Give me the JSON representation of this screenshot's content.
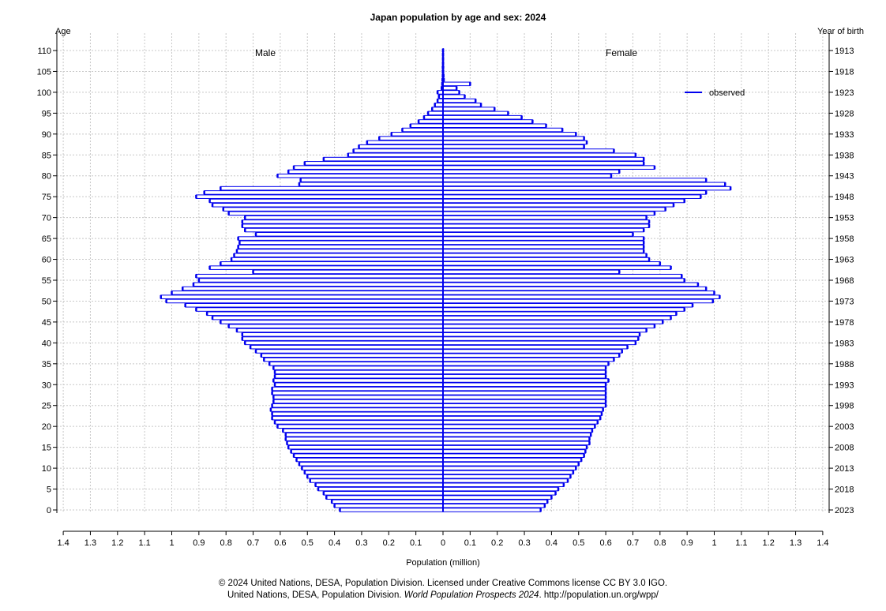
{
  "chart_data": {
    "type": "bar",
    "title": "Japan population by age and sex: 2024",
    "y_left_label": "Age",
    "y_right_label": "Year of birth",
    "xlabel": "Population (million)",
    "series_labels": [
      "Male",
      "Female"
    ],
    "legend": {
      "label": "observed",
      "color": "#0000ee",
      "position": "top-right"
    },
    "grid": true,
    "xlim": [
      -1.4,
      1.4
    ],
    "ylim": [
      0,
      110
    ],
    "x_ticks": [
      "1.4",
      "1.3",
      "1.2",
      "1.1",
      "1",
      "0.9",
      "0.8",
      "0.7",
      "0.6",
      "0.5",
      "0.4",
      "0.3",
      "0.2",
      "0.1",
      "0",
      "0.1",
      "0.2",
      "0.3",
      "0.4",
      "0.5",
      "0.6",
      "0.7",
      "0.8",
      "0.9",
      "1",
      "1.1",
      "1.2",
      "1.3",
      "1.4"
    ],
    "age_ticks": [
      "0",
      "5",
      "10",
      "15",
      "20",
      "25",
      "30",
      "35",
      "40",
      "45",
      "50",
      "55",
      "60",
      "65",
      "70",
      "75",
      "80",
      "85",
      "90",
      "95",
      "100",
      "105",
      "110"
    ],
    "year_ticks": [
      "2023",
      "2018",
      "2013",
      "2008",
      "2003",
      "1998",
      "1993",
      "1988",
      "1983",
      "1978",
      "1973",
      "1968",
      "1963",
      "1958",
      "1953",
      "1948",
      "1943",
      "1938",
      "1933",
      "1928",
      "1923",
      "1918",
      "1913"
    ],
    "ages": [
      0,
      1,
      2,
      3,
      4,
      5,
      6,
      7,
      8,
      9,
      10,
      11,
      12,
      13,
      14,
      15,
      16,
      17,
      18,
      19,
      20,
      21,
      22,
      23,
      24,
      25,
      26,
      27,
      28,
      29,
      30,
      31,
      32,
      33,
      34,
      35,
      36,
      37,
      38,
      39,
      40,
      41,
      42,
      43,
      44,
      45,
      46,
      47,
      48,
      49,
      50,
      51,
      52,
      53,
      54,
      55,
      56,
      57,
      58,
      59,
      60,
      61,
      62,
      63,
      64,
      65,
      66,
      67,
      68,
      69,
      70,
      71,
      72,
      73,
      74,
      75,
      76,
      77,
      78,
      79,
      80,
      81,
      82,
      83,
      84,
      85,
      86,
      87,
      88,
      89,
      90,
      91,
      92,
      93,
      94,
      95,
      96,
      97,
      98,
      99,
      100,
      101,
      102,
      103,
      104,
      105,
      106,
      107,
      108,
      109,
      110
    ],
    "male": [
      0.38,
      0.4,
      0.41,
      0.43,
      0.44,
      0.46,
      0.47,
      0.49,
      0.5,
      0.51,
      0.52,
      0.53,
      0.54,
      0.55,
      0.56,
      0.57,
      0.575,
      0.58,
      0.58,
      0.59,
      0.61,
      0.62,
      0.63,
      0.63,
      0.635,
      0.63,
      0.625,
      0.625,
      0.63,
      0.63,
      0.62,
      0.625,
      0.62,
      0.62,
      0.625,
      0.64,
      0.66,
      0.67,
      0.69,
      0.71,
      0.73,
      0.74,
      0.74,
      0.76,
      0.79,
      0.82,
      0.85,
      0.87,
      0.91,
      0.95,
      1.02,
      1.04,
      1.0,
      0.96,
      0.92,
      0.9,
      0.91,
      0.7,
      0.86,
      0.82,
      0.78,
      0.77,
      0.76,
      0.755,
      0.75,
      0.755,
      0.69,
      0.73,
      0.74,
      0.74,
      0.73,
      0.79,
      0.81,
      0.85,
      0.86,
      0.91,
      0.88,
      0.82,
      0.53,
      0.525,
      0.61,
      0.57,
      0.55,
      0.51,
      0.44,
      0.35,
      0.33,
      0.31,
      0.28,
      0.235,
      0.19,
      0.15,
      0.12,
      0.09,
      0.07,
      0.055,
      0.04,
      0.03,
      0.02,
      0.015,
      0.02,
      0.005,
      0.003,
      0.002,
      0.001,
      0.001,
      0.001,
      0.0005,
      0.0003,
      0.0002,
      0.0001
    ],
    "female": [
      0.36,
      0.375,
      0.385,
      0.4,
      0.415,
      0.425,
      0.445,
      0.46,
      0.47,
      0.48,
      0.49,
      0.5,
      0.51,
      0.52,
      0.525,
      0.53,
      0.54,
      0.54,
      0.545,
      0.55,
      0.56,
      0.57,
      0.58,
      0.585,
      0.59,
      0.6,
      0.6,
      0.6,
      0.6,
      0.6,
      0.6,
      0.61,
      0.6,
      0.6,
      0.6,
      0.61,
      0.63,
      0.65,
      0.66,
      0.68,
      0.71,
      0.72,
      0.725,
      0.75,
      0.78,
      0.81,
      0.84,
      0.86,
      0.89,
      0.92,
      0.995,
      1.02,
      1.0,
      0.97,
      0.94,
      0.89,
      0.88,
      0.65,
      0.84,
      0.8,
      0.76,
      0.75,
      0.74,
      0.74,
      0.74,
      0.74,
      0.7,
      0.74,
      0.76,
      0.76,
      0.75,
      0.78,
      0.82,
      0.85,
      0.89,
      0.95,
      0.97,
      1.06,
      1.04,
      0.97,
      0.62,
      0.65,
      0.78,
      0.74,
      0.74,
      0.71,
      0.63,
      0.52,
      0.53,
      0.52,
      0.49,
      0.44,
      0.38,
      0.33,
      0.29,
      0.24,
      0.19,
      0.14,
      0.12,
      0.08,
      0.06,
      0.05,
      0.1,
      0.003,
      0.002,
      0.001,
      0.001,
      0.0007,
      0.0005,
      0.0003,
      0.0002
    ]
  },
  "credits": {
    "line1": "© 2024 United Nations, DESA, Population Division. Licensed under Creative Commons license CC BY 3.0 IGO.",
    "line2_prefix": "United Nations, DESA, Population Division. ",
    "line2_italic": "World Population Prospects 2024",
    "line2_suffix": ". http://population.un.org/wpp/"
  }
}
